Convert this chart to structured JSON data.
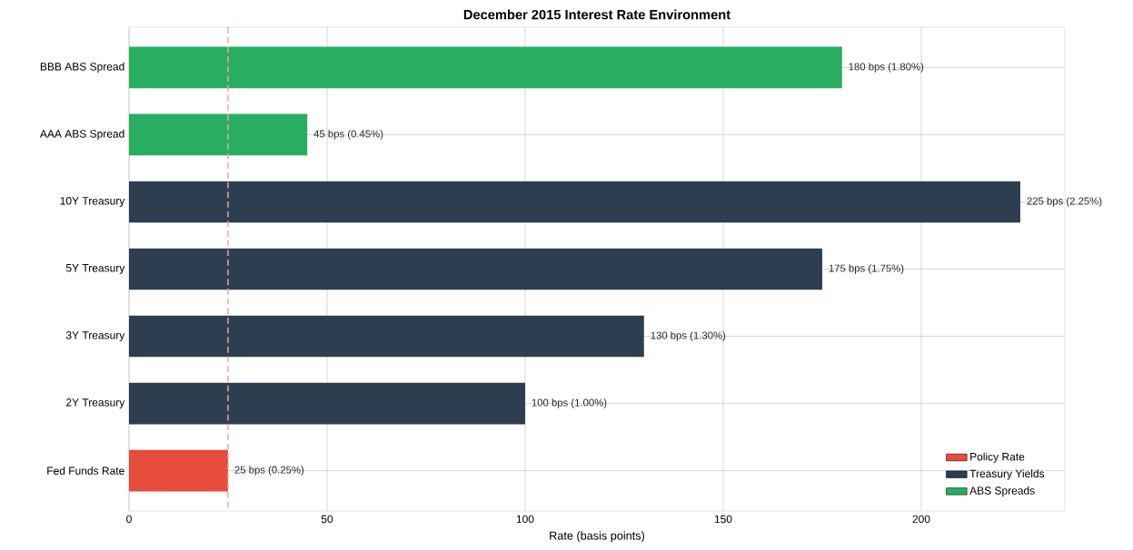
{
  "chart_data": {
    "type": "bar",
    "orientation": "horizontal",
    "title": "December 2015 Interest Rate Environment",
    "xlabel": "Rate (basis points)",
    "categories": [
      "BBB ABS Spread",
      "AAA ABS Spread",
      "10Y Treasury",
      "5Y Treasury",
      "3Y Treasury",
      "2Y Treasury",
      "Fed Funds Rate"
    ],
    "series": [
      {
        "name": "Policy Rate",
        "color": "#e74c3c",
        "values": [
          null,
          null,
          null,
          null,
          null,
          null,
          25
        ],
        "value_labels": [
          null,
          null,
          null,
          null,
          null,
          null,
          "25 bps (0.25%)"
        ]
      },
      {
        "name": "Treasury Yields",
        "color": "#2c3e50",
        "values": [
          null,
          null,
          225,
          175,
          130,
          100,
          null
        ],
        "value_labels": [
          null,
          null,
          "225 bps (2.25%)",
          "175 bps (1.75%)",
          "130 bps (1.30%)",
          "100 bps (1.00%)",
          null
        ]
      },
      {
        "name": "ABS Spreads",
        "color": "#27ae60",
        "values": [
          180,
          45,
          null,
          null,
          null,
          null,
          null
        ],
        "value_labels": [
          "180 bps (1.80%)",
          "45 bps (0.45%)",
          null,
          null,
          null,
          null,
          null
        ]
      }
    ],
    "xlim": [
      0,
      236.25
    ],
    "xticks": [
      0,
      50,
      100,
      150,
      200
    ],
    "ref_lines": [
      {
        "axis": "x",
        "value": 25,
        "color": "#f2a59d",
        "line_style": "dashed"
      }
    ],
    "grid": true,
    "legend": "bottom right"
  }
}
